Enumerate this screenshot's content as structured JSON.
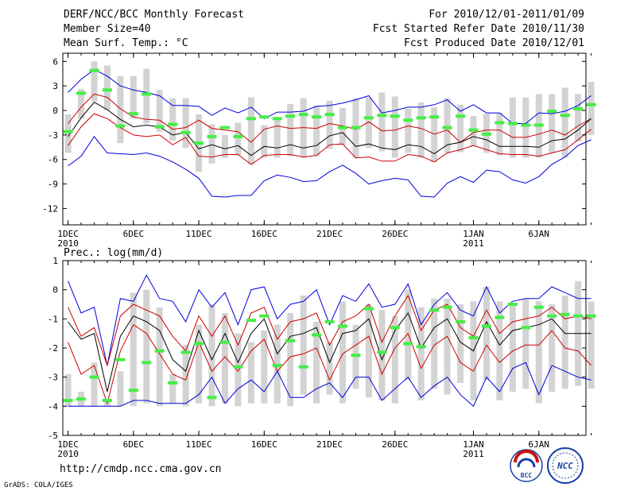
{
  "header": {
    "title": "DERF/NCC/BCC Monthly Forecast",
    "member_size": "Member Size=40",
    "variable1": "Mean Surf. Temp.: °C",
    "for_period": "For 2010/12/01-2011/01/09",
    "fcst_started": "Fcst Started Refer Date 2010/11/30",
    "fcst_produced": "Fcst Produced Date 2010/12/01"
  },
  "footer": {
    "url": "http://cmdp.ncc.cma.gov.cn",
    "credit": "GrADS: COLA/IGES",
    "logo_bcc": "BCC",
    "logo_ncc": "NCC"
  },
  "colors": {
    "max_line": "#0000dd",
    "upper_line": "#cc0000",
    "mean_line": "#000000",
    "lower_line": "#cc0000",
    "box": "#d3d3d3",
    "median": "#44ee44",
    "frame": "#000000"
  },
  "chart_data": [
    {
      "type": "line",
      "name": "temperature",
      "ylabel": "Mean Surf. Temp.: °C",
      "ylim": [
        -14,
        7
      ],
      "yticks": [
        6,
        3,
        0,
        -3,
        -6,
        -9,
        -12
      ],
      "xlim": [
        0.6,
        40.6
      ],
      "xtick_days": [
        1,
        6,
        11,
        16,
        21,
        26,
        32,
        37
      ],
      "xtick_labels": [
        "1DEC",
        "6DEC",
        "11DEC",
        "16DEC",
        "21DEC",
        "26DEC",
        "1JAN",
        "6JAN"
      ],
      "xtick_year_labels": [
        {
          "day": 1,
          "label": "2010"
        },
        {
          "day": 32,
          "label": "2011"
        }
      ],
      "series": [
        {
          "name": "max",
          "values": [
            2.2,
            3.8,
            5,
            4.2,
            3,
            2.5,
            2.2,
            1.8,
            0.6,
            0.6,
            0.5,
            -0.6,
            0.3,
            -0.3,
            0.4,
            -1,
            -0.2,
            -0.2,
            -0.1,
            0.5,
            0.6,
            0.9,
            1.3,
            1.8,
            -0.3,
            0,
            0.4,
            0.4,
            0.7,
            1.3,
            -0.1,
            0.7,
            -0.3,
            -0.3,
            -1.6,
            -1.6,
            -0.3,
            -0.4,
            -0.1,
            0.6,
            1.8
          ]
        },
        {
          "name": "upper",
          "values": [
            -1.6,
            0.4,
            2,
            1.6,
            0.2,
            -0.8,
            -1.1,
            -1.2,
            -2.3,
            -2.1,
            -1.2,
            -2.2,
            -2.4,
            -2.6,
            -3.9,
            -2.3,
            -1.9,
            -2.2,
            -2.1,
            -2.2,
            -1.6,
            -1.9,
            -2.3,
            -1.4,
            -2.5,
            -2.4,
            -1.9,
            -2.2,
            -2.9,
            -2.4,
            -3.9,
            -2.7,
            -2.4,
            -2.4,
            -3.3,
            -3.3,
            -2.9,
            -2.4,
            -3,
            -1.9,
            -1
          ]
        },
        {
          "name": "mean",
          "values": [
            -3.2,
            -0.9,
            1,
            0.1,
            -1.1,
            -2,
            -1.8,
            -2,
            -3,
            -2.7,
            -4.7,
            -4.2,
            -4.7,
            -4.3,
            -5.5,
            -4.4,
            -4.6,
            -4.2,
            -4.6,
            -4.3,
            -3.1,
            -2.7,
            -4.4,
            -4.1,
            -4.6,
            -4.8,
            -4.2,
            -4.4,
            -5.3,
            -4.2,
            -3.9,
            -3.2,
            -3.6,
            -4.4,
            -4.4,
            -4.4,
            -4.5,
            -3.7,
            -3.5,
            -2.4,
            -1
          ]
        },
        {
          "name": "lower",
          "values": [
            -4.3,
            -2,
            -0.4,
            -1,
            -2.1,
            -3,
            -3.2,
            -3,
            -4.2,
            -3.3,
            -5.6,
            -5.7,
            -5.4,
            -5.4,
            -6.6,
            -5.5,
            -5.4,
            -5.4,
            -5.7,
            -5.5,
            -4.2,
            -4.1,
            -5.8,
            -5.7,
            -6.2,
            -6.2,
            -5.4,
            -5.6,
            -6.3,
            -5.2,
            -4.8,
            -4.3,
            -4.8,
            -5.3,
            -5.4,
            -5.4,
            -5.6,
            -5.2,
            -4.8,
            -3.6,
            -2.3
          ]
        },
        {
          "name": "min",
          "values": [
            -6.8,
            -5.6,
            -3.2,
            -5.2,
            -5.3,
            -5.4,
            -5.2,
            -5.6,
            -6.3,
            -7.2,
            -8.3,
            -10.5,
            -10.6,
            -10.4,
            -10.4,
            -8.6,
            -7.9,
            -8.2,
            -8.7,
            -8.6,
            -7.5,
            -6.7,
            -7.7,
            -9,
            -8.6,
            -8.3,
            -8.5,
            -10.5,
            -10.6,
            -8.9,
            -8.1,
            -8.8,
            -7.3,
            -7.5,
            -8.5,
            -8.9,
            -8.1,
            -6.6,
            -5.7,
            -4.3,
            -3.6
          ]
        },
        {
          "name": "median",
          "values": [
            -2.6,
            2.1,
            4.9,
            2.5,
            -1.9,
            -0.4,
            2,
            -2,
            -1.7,
            -2.7,
            -4,
            -3.2,
            -2.1,
            -3.2,
            -1,
            -0.8,
            -1,
            -0.7,
            -0.5,
            -0.8,
            -0.5,
            -2.1,
            -2.1,
            -0.9,
            -0.6,
            -0.7,
            -1.2,
            -0.9,
            -0.8,
            -2.1,
            -0.7,
            -2.4,
            -2.9,
            -1.5,
            -1.6,
            -1.8,
            -1.8,
            -0.1,
            -0.6,
            0.2,
            0.7
          ]
        }
      ],
      "boxes": {
        "upper": [
          -0.5,
          2.6,
          6,
          5.5,
          4.2,
          4.2,
          5.1,
          2.5,
          1.5,
          1.5,
          -0.5,
          -1.7,
          -3,
          -1.5,
          1.6,
          -1.8,
          -1.2,
          0.8,
          1.5,
          0.6,
          1.2,
          0.3,
          1.5,
          1.6,
          2.2,
          1.7,
          0.2,
          1,
          0.4,
          1.5,
          0.7,
          -0.7,
          -0.4,
          -0.3,
          1.6,
          1.6,
          2,
          2,
          2.8,
          2,
          3.5
        ],
        "lower": [
          -5.2,
          -1,
          1.1,
          0,
          -4,
          -1,
          -1.6,
          -2.6,
          -3.7,
          -4.6,
          -7.5,
          -6.5,
          -5.8,
          -5.5,
          -6.6,
          -5.8,
          -5.8,
          -5.6,
          -5.8,
          -5.6,
          -4.7,
          -4.2,
          -5.8,
          -4.6,
          -5,
          -5.8,
          -5.2,
          -5.8,
          -6.3,
          -5.2,
          -5.1,
          -4.4,
          -5.2,
          -5.5,
          -5.8,
          -5.8,
          -5.8,
          -5.2,
          -5.8,
          -3.8,
          -3
        ]
      }
    },
    {
      "type": "line",
      "name": "precipitation",
      "ylabel": "Prec.: log(mm/d)",
      "ylim": [
        -5,
        1
      ],
      "yticks": [
        1,
        0,
        -1,
        -2,
        -3,
        -4,
        -5
      ],
      "xlim": [
        0.6,
        40.6
      ],
      "xtick_days": [
        1,
        6,
        11,
        16,
        21,
        26,
        32,
        37
      ],
      "xtick_labels": [
        "1DEC",
        "6DEC",
        "11DEC",
        "16DEC",
        "21DEC",
        "26DEC",
        "1JAN",
        "6JAN"
      ],
      "xtick_year_labels": [
        {
          "day": 1,
          "label": "2010"
        },
        {
          "day": 32,
          "label": "2011"
        }
      ],
      "series": [
        {
          "name": "max",
          "values": [
            0.3,
            -0.8,
            -0.6,
            -2.6,
            -0.3,
            -0.4,
            0.5,
            -0.3,
            -0.4,
            -1.1,
            0,
            -0.6,
            -0.1,
            -1.2,
            0,
            0.1,
            -1,
            -0.5,
            -0.4,
            0,
            -1.2,
            -0.2,
            -0.4,
            0.2,
            -0.6,
            -0.5,
            0.2,
            -1.2,
            -0.5,
            -0.1,
            -0.7,
            -0.9,
            0.1,
            -0.8,
            -0.4,
            -0.3,
            -0.3,
            0.1,
            -0.1,
            -0.3,
            -0.3
          ]
        },
        {
          "name": "upper",
          "values": [
            -0.6,
            -1.6,
            -1.3,
            -2.6,
            -0.9,
            -0.5,
            -0.7,
            -0.9,
            -1.6,
            -2.1,
            -0.9,
            -1.6,
            -0.9,
            -1.9,
            -0.8,
            -0.6,
            -1.7,
            -1.1,
            -1,
            -0.8,
            -1.9,
            -1.1,
            -0.9,
            -0.5,
            -1.8,
            -0.9,
            -0.2,
            -1.4,
            -0.7,
            -0.5,
            -1.3,
            -1.6,
            -0.7,
            -1.5,
            -1.1,
            -1,
            -0.9,
            -0.6,
            -1,
            -0.9,
            -1
          ]
        },
        {
          "name": "mean",
          "values": [
            -1.1,
            -1.7,
            -1.5,
            -3.5,
            -1.6,
            -0.9,
            -1.1,
            -1.4,
            -2.4,
            -2.8,
            -1.4,
            -2.4,
            -1.5,
            -2.5,
            -1.5,
            -1,
            -2.2,
            -1.6,
            -1.5,
            -1.3,
            -2.5,
            -1.5,
            -1.4,
            -1,
            -2.4,
            -1.4,
            -0.8,
            -2,
            -1.3,
            -1,
            -1.8,
            -2.1,
            -1.1,
            -1.9,
            -1.4,
            -1.3,
            -1.2,
            -1,
            -1.5,
            -1.5,
            -1.5
          ]
        },
        {
          "name": "lower",
          "values": [
            -1.8,
            -2.9,
            -2.6,
            -3.9,
            -2.1,
            -1.2,
            -1.5,
            -2.2,
            -2.9,
            -3.1,
            -1.8,
            -2.8,
            -2.3,
            -2.8,
            -2.1,
            -1.7,
            -2.8,
            -2.3,
            -2.2,
            -2,
            -3.1,
            -2.2,
            -1.9,
            -1.6,
            -2.9,
            -2,
            -1.5,
            -2.7,
            -1.9,
            -1.6,
            -2.5,
            -2.8,
            -1.9,
            -2.5,
            -2.1,
            -1.9,
            -1.9,
            -1.4,
            -2,
            -2.1,
            -2.6
          ]
        },
        {
          "name": "min",
          "values": [
            -4,
            -4,
            -4,
            -4,
            -4,
            -3.8,
            -3.8,
            -3.9,
            -3.9,
            -3.9,
            -3.6,
            -3,
            -3.9,
            -3.4,
            -3.1,
            -3.5,
            -2.8,
            -3.7,
            -3.7,
            -3.4,
            -3.2,
            -3.7,
            -3,
            -3,
            -3.8,
            -3.4,
            -3,
            -3.7,
            -3.3,
            -3,
            -3.6,
            -4,
            -3,
            -3.5,
            -2.7,
            -2.5,
            -3.6,
            -2.6,
            -2.8,
            -3,
            -3.1
          ]
        },
        {
          "name": "median",
          "values": [
            -3.8,
            -3.75,
            -3,
            -3.8,
            -2.4,
            -3.45,
            -2.5,
            -2.1,
            -3.2,
            -2.15,
            -1.85,
            -3.7,
            -1.8,
            -2.65,
            -1.05,
            -0.9,
            -2.6,
            -1.75,
            -2.65,
            -1.55,
            -1.1,
            -1.25,
            -2.25,
            -0.65,
            -2.15,
            -1.3,
            -1.85,
            -1.95,
            -0.7,
            -0.6,
            -1.1,
            -1.65,
            -1.25,
            -0.95,
            -0.5,
            -1.3,
            -0.6,
            -0.9,
            -0.85,
            -0.9,
            -0.9
          ]
        }
      ],
      "boxes": {
        "upper": [
          -2.9,
          -3.5,
          -2.5,
          -3.8,
          -2.8,
          -0.1,
          0,
          -0.6,
          -2.9,
          -1.9,
          -1.2,
          -0.5,
          -0.8,
          -1.5,
          -1.8,
          -1.4,
          -1.2,
          -0.8,
          -0.2,
          -1.1,
          -1.8,
          -0.4,
          -1.2,
          -0.5,
          -0.7,
          -0.9,
          0,
          -0.6,
          -0.3,
          -0.3,
          -0.5,
          -0.4,
          0.1,
          -0.4,
          -0.5,
          -0.3,
          -0.4,
          -0.5,
          -0.2,
          0.3,
          -0.4
        ],
        "lower": [
          -4,
          -4,
          -4,
          -4,
          -4,
          -4,
          -3.9,
          -4,
          -3.9,
          -4,
          -3.9,
          -4,
          -3.9,
          -4,
          -3.9,
          -3.9,
          -3.9,
          -4,
          -3.6,
          -3.9,
          -3.6,
          -3.9,
          -3.4,
          -3.7,
          -3.8,
          -3.9,
          -3.1,
          -3.8,
          -3.4,
          -3.6,
          -3.2,
          -3.8,
          -3.1,
          -3.8,
          -3.5,
          -3.4,
          -3.9,
          -3.5,
          -3.4,
          -3.3,
          -3.4
        ]
      }
    }
  ]
}
